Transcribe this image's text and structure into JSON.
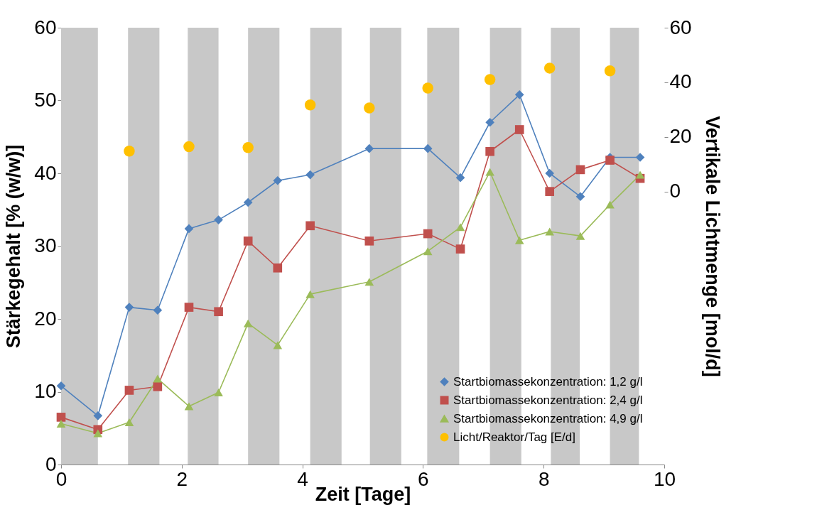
{
  "chart_data": {
    "type": "line",
    "xlabel": "Zeit   [Tage]",
    "ylabel": "Stärkegehalt [% (w/w)]",
    "y2label": "Vertikale Lichtmenge [mol/d]",
    "xlim": [
      0,
      10
    ],
    "xticks": [
      0,
      2,
      4,
      6,
      8,
      10
    ],
    "ylim": [
      0,
      60
    ],
    "yticks": [
      0,
      10,
      20,
      30,
      40,
      50,
      60
    ],
    "y2lim": [
      -100,
      60
    ],
    "y2ticks": [
      0,
      20,
      40,
      60
    ],
    "grid": false,
    "legend": "bottom right",
    "bands": [
      {
        "axis": "x",
        "from": 0,
        "to": 0.61,
        "color": "#c8c8c8"
      },
      {
        "axis": "x",
        "from": 1.11,
        "to": 1.63,
        "color": "#c8c8c8"
      },
      {
        "axis": "x",
        "from": 2.1,
        "to": 2.61,
        "color": "#c8c8c8"
      },
      {
        "axis": "x",
        "from": 3.1,
        "to": 3.62,
        "color": "#c8c8c8"
      },
      {
        "axis": "x",
        "from": 4.13,
        "to": 4.65,
        "color": "#c8c8c8"
      },
      {
        "axis": "x",
        "from": 5.12,
        "to": 5.64,
        "color": "#c8c8c8"
      },
      {
        "axis": "x",
        "from": 6.07,
        "to": 6.6,
        "color": "#c8c8c8"
      },
      {
        "axis": "x",
        "from": 7.11,
        "to": 7.63,
        "color": "#c8c8c8"
      },
      {
        "axis": "x",
        "from": 8.12,
        "to": 8.6,
        "color": "#c8c8c8"
      },
      {
        "axis": "x",
        "from": 9.1,
        "to": 9.58,
        "color": "#c8c8c8"
      }
    ],
    "series": [
      {
        "name": "Startbiomassekonzentration: 1,2 g/l",
        "color": "#4f81bd",
        "marker": "diamond",
        "x": [
          0,
          0.61,
          1.13,
          1.6,
          2.12,
          2.61,
          3.1,
          3.59,
          4.13,
          5.11,
          6.08,
          6.62,
          7.11,
          7.6,
          8.1,
          8.61,
          9.1,
          9.6
        ],
        "values": [
          10.8,
          6.7,
          21.6,
          21.2,
          32.4,
          33.6,
          36,
          39,
          39.8,
          43.4,
          43.4,
          39.4,
          47,
          50.8,
          40,
          36.8,
          42.2,
          42.2
        ]
      },
      {
        "name": "Startbiomassekonzentration: 2,4 g/l",
        "color": "#c0504d",
        "marker": "square",
        "x": [
          0,
          0.61,
          1.13,
          1.6,
          2.12,
          2.61,
          3.1,
          3.59,
          4.13,
          5.11,
          6.08,
          6.62,
          7.11,
          7.6,
          8.1,
          8.61,
          9.1,
          9.6
        ],
        "values": [
          6.5,
          4.8,
          10.2,
          10.7,
          21.6,
          21,
          30.7,
          27,
          32.8,
          30.7,
          31.7,
          29.6,
          43,
          46,
          37.5,
          40.5,
          41.8,
          39.3
        ]
      },
      {
        "name": "Startbiomassekonzentration: 4,9 g/l",
        "color": "#9bbb59",
        "marker": "triangle",
        "x": [
          0,
          0.61,
          1.13,
          1.6,
          2.12,
          2.61,
          3.1,
          3.59,
          4.13,
          5.11,
          6.08,
          6.62,
          7.11,
          7.6,
          8.1,
          8.61,
          9.1,
          9.6
        ],
        "values": [
          5.6,
          4.3,
          5.8,
          11.8,
          8,
          9.9,
          19.4,
          16.4,
          23.4,
          25.1,
          29.3,
          32.6,
          40.2,
          30.8,
          32,
          31.4,
          35.7,
          39.8
        ]
      },
      {
        "name": "Licht/Reaktor/Tag [E/d]",
        "type": "scatter",
        "axis": "y2",
        "color": "#ffc000",
        "marker": "circle",
        "x": [
          1.13,
          2.12,
          3.1,
          4.13,
          5.11,
          6.08,
          7.11,
          8.1,
          9.1
        ],
        "values": [
          14.8,
          16.4,
          16.1,
          31.7,
          30.6,
          37.9,
          41,
          45.2,
          44.2
        ]
      }
    ]
  }
}
